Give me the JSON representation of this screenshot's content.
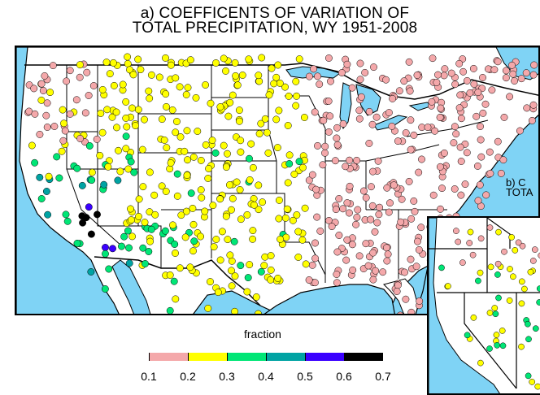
{
  "figure": {
    "title_line1": "a) COEFFICENTS OF VARIATION OF",
    "title_line2": "TOTAL PRECIPITATION, WY 1951-2008",
    "inset_title_line1": "b) C",
    "inset_title_line2": "TOTA"
  },
  "legend": {
    "label": "fraction",
    "bins": [
      {
        "from": 0.1,
        "to": 0.2,
        "color": "#f4a8aa"
      },
      {
        "from": 0.2,
        "to": 0.3,
        "color": "#ffff00"
      },
      {
        "from": 0.3,
        "to": 0.4,
        "color": "#00e676"
      },
      {
        "from": 0.4,
        "to": 0.5,
        "color": "#00a3a3"
      },
      {
        "from": 0.5,
        "to": 0.6,
        "color": "#3a00ff"
      },
      {
        "from": 0.6,
        "to": 0.7,
        "color": "#000000"
      }
    ],
    "ticks": [
      "0.1",
      "0.2",
      "0.3",
      "0.4",
      "0.5",
      "0.6",
      "0.7"
    ]
  },
  "map": {
    "water_color": "#7fd3f5",
    "land_color": "#ffffff",
    "border_color": "#000000"
  }
}
